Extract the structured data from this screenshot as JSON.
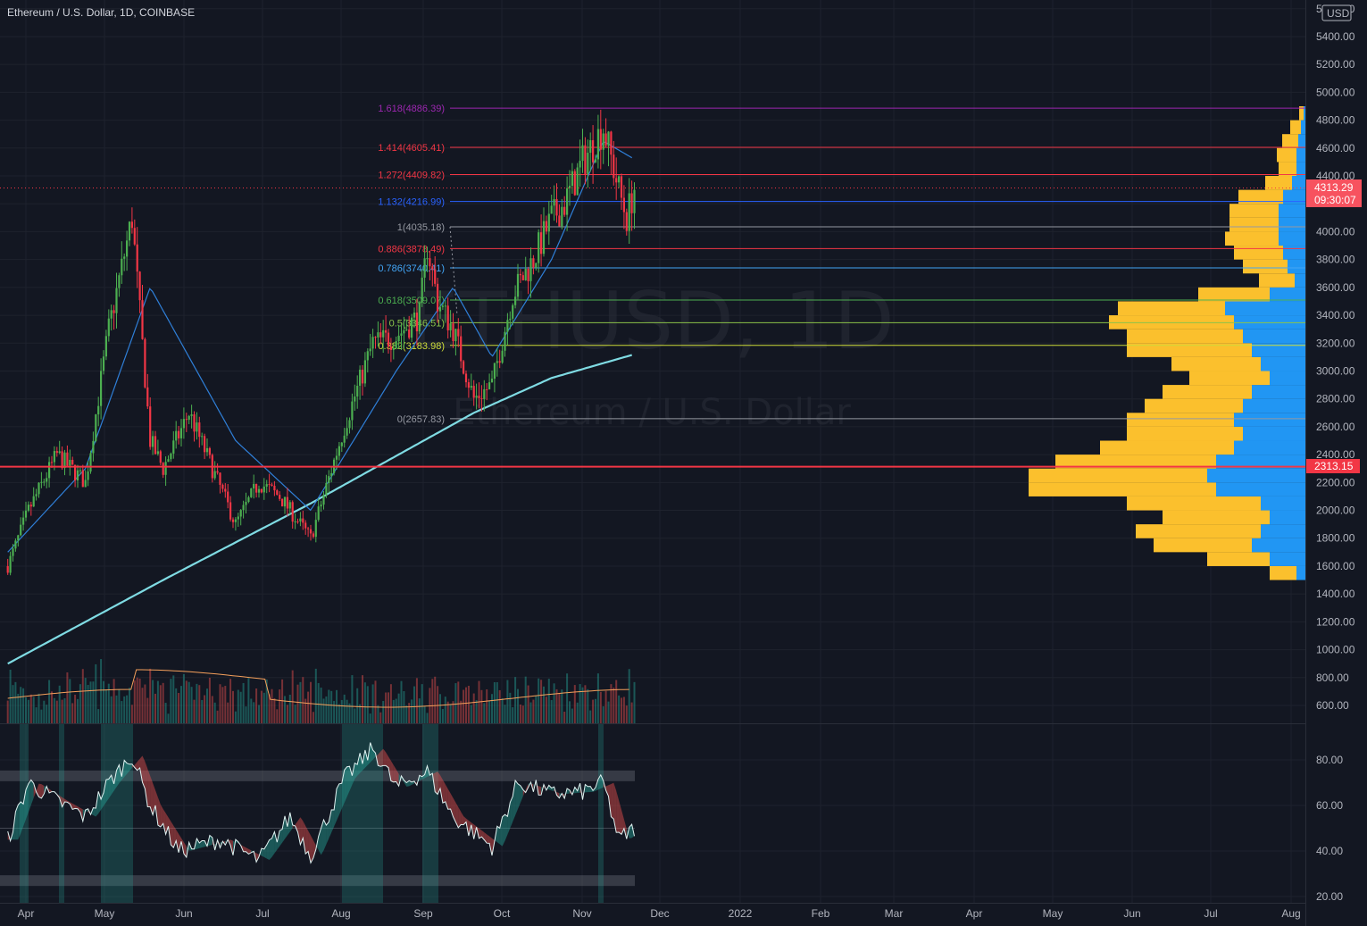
{
  "header": {
    "title": "Ethereum / U.S. Dollar, 1D, COINBASE"
  },
  "watermark": {
    "symbol": "ETHUSD, 1D",
    "name": "Ethereum / U.S. Dollar"
  },
  "price_axis": {
    "currency_label": "USD",
    "current_price": "4313.29",
    "countdown": "09:30:07",
    "horizontal_line_price": "2313.15",
    "colors": {
      "up": "#26a69a",
      "down": "#ef5350",
      "candle_up": "#4caf50",
      "candle_down": "#f23645",
      "sma200": "#7fdbe3",
      "sma20": "#2f7fd8",
      "vp_up": "#2196f3",
      "vp_down": "#fbc02d"
    }
  },
  "chart_data": [
    {
      "type": "candlestick",
      "title": "Ethereum / U.S. Dollar, 1D, COINBASE",
      "x_tick_labels": [
        "Apr",
        "May",
        "Jun",
        "Jul",
        "Aug",
        "Sep",
        "Oct",
        "Nov",
        "Dec",
        "2022",
        "Feb",
        "Mar",
        "Apr",
        "May",
        "Jun",
        "Jul",
        "Aug"
      ],
      "y_tick_labels": [
        "5600.00",
        "5400.00",
        "5200.00",
        "5000.00",
        "4800.00",
        "4600.00",
        "4400.00",
        "4200.00",
        "4000.00",
        "3800.00",
        "3600.00",
        "3400.00",
        "3200.00",
        "3000.00",
        "2800.00",
        "2600.00",
        "2400.00",
        "2200.00",
        "2000.00",
        "1800.00",
        "1600.00",
        "1400.00",
        "1200.00",
        "1000.00",
        "800.00",
        "600.00"
      ],
      "y_ticks": [
        5600,
        5400,
        5200,
        5000,
        4800,
        4600,
        4400,
        4200,
        4000,
        3800,
        3600,
        3400,
        3200,
        3000,
        2800,
        2600,
        2400,
        2200,
        2000,
        1800,
        1600,
        1400,
        1200,
        1000,
        800,
        600
      ],
      "ylim": [
        500,
        5650
      ],
      "grid": true,
      "price_path": {
        "dates": [
          "2021-03-25",
          "2021-04-02",
          "2021-04-13",
          "2021-04-24",
          "2021-05-03",
          "2021-05-12",
          "2021-05-19",
          "2021-05-24",
          "2021-06-03",
          "2021-06-21",
          "2021-06-30",
          "2021-07-08",
          "2021-07-20",
          "2021-08-02",
          "2021-08-13",
          "2021-08-22",
          "2021-08-31",
          "2021-09-03",
          "2021-09-07",
          "2021-09-13",
          "2021-09-21",
          "2021-09-28",
          "2021-10-06",
          "2021-10-14",
          "2021-10-21",
          "2021-10-26",
          "2021-11-02",
          "2021-11-10",
          "2021-11-16",
          "2021-11-19",
          "2021-11-22"
        ],
        "close": [
          1600,
          2000,
          2400,
          2200,
          3300,
          4100,
          2500,
          2300,
          2700,
          1900,
          2200,
          2100,
          1800,
          2600,
          3200,
          3250,
          3400,
          3900,
          3500,
          3300,
          2800,
          2900,
          3550,
          3800,
          4100,
          4200,
          4500,
          4750,
          4300,
          4100,
          4313
        ]
      },
      "sma200": {
        "dates": [
          "2021-03-25",
          "2021-05-24",
          "2021-07-20",
          "2021-09-21",
          "2021-10-21",
          "2021-11-22"
        ],
        "values": [
          900,
          1500,
          2050,
          2700,
          2950,
          3120
        ]
      },
      "sma20": {
        "dates": [
          "2021-03-25",
          "2021-04-24",
          "2021-05-19",
          "2021-06-21",
          "2021-07-20",
          "2021-08-22",
          "2021-09-13",
          "2021-09-28",
          "2021-10-21",
          "2021-11-10",
          "2021-11-22"
        ],
        "values": [
          1700,
          2300,
          3600,
          2500,
          2000,
          3000,
          3600,
          3100,
          3800,
          4650,
          4520
        ]
      },
      "fib_levels": [
        {
          "ratio": "1.618",
          "price": "4886.39",
          "color": "#9c27b0"
        },
        {
          "ratio": "1.414",
          "price": "4605.41",
          "color": "#f23645"
        },
        {
          "ratio": "1.272",
          "price": "4409.82",
          "color": "#f23645"
        },
        {
          "ratio": "1.132",
          "price": "4216.99",
          "color": "#2962ff"
        },
        {
          "ratio": "1",
          "price": "4035.18",
          "color": "#9598a1"
        },
        {
          "ratio": "0.886",
          "price": "3878.49",
          "color": "#f23645"
        },
        {
          "ratio": "0.786",
          "price": "3740.41",
          "color": "#42a5f5"
        },
        {
          "ratio": "0.618",
          "price": "3509.07",
          "color": "#4caf50"
        },
        {
          "ratio": "0.5",
          "price": "3346.51",
          "color": "#8bc34a"
        },
        {
          "ratio": "0.382",
          "price": "3183.98",
          "color": "#cddc39"
        },
        {
          "ratio": "0",
          "price": "2657.83",
          "color": "#9598a1"
        }
      ]
    },
    {
      "type": "line",
      "name": "oscillator",
      "y_tick_labels": [
        "80.00",
        "60.00",
        "40.00",
        "20.00"
      ],
      "y_ticks": [
        80,
        60,
        40,
        20
      ],
      "ylim": [
        16,
        96
      ],
      "band_upper": 73,
      "band_lower": 27,
      "midline": 50,
      "path": {
        "dates": [
          "2021-03-25",
          "2021-04-02",
          "2021-04-13",
          "2021-04-24",
          "2021-05-03",
          "2021-05-12",
          "2021-05-19",
          "2021-05-30",
          "2021-06-15",
          "2021-06-30",
          "2021-07-12",
          "2021-07-20",
          "2021-08-02",
          "2021-08-13",
          "2021-08-22",
          "2021-09-03",
          "2021-09-13",
          "2021-09-28",
          "2021-10-08",
          "2021-10-21",
          "2021-11-02",
          "2021-11-10",
          "2021-11-16",
          "2021-11-22"
        ],
        "values": [
          45,
          70,
          62,
          55,
          70,
          82,
          60,
          40,
          45,
          36,
          55,
          38,
          72,
          85,
          68,
          75,
          55,
          42,
          70,
          65,
          66,
          70,
          45,
          50
        ]
      }
    }
  ]
}
